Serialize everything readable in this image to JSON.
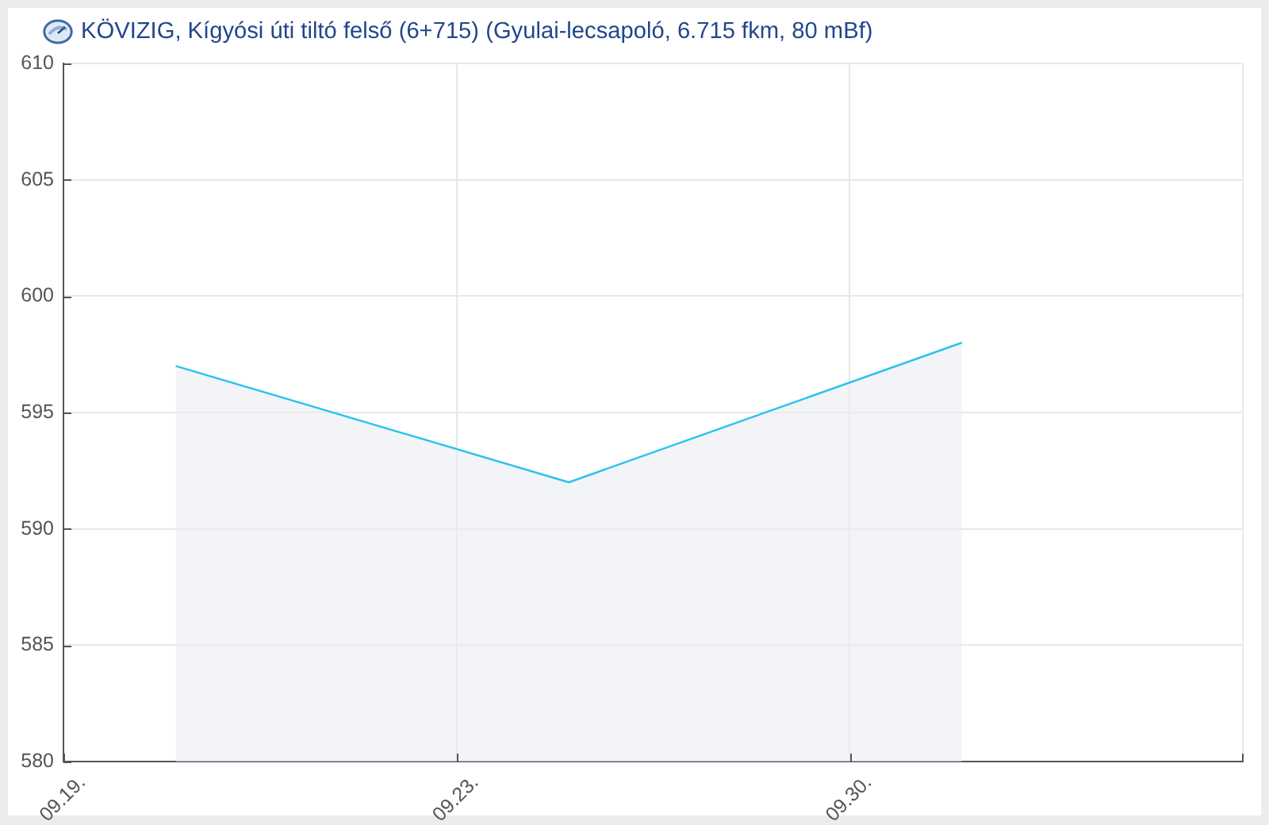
{
  "chart_data": {
    "type": "area",
    "title": "KÖVIZIG, Kígyósi úti tiltó felső (6+715) (Gyulai-lecsapoló, 6.715 fkm, 80 mBf)",
    "x": [
      "--09-18",
      "--09-25",
      "--10-02"
    ],
    "series": [
      {
        "color": "#2ac3ee",
        "values": [
          597,
          592,
          598
        ]
      }
    ],
    "xlim": [
      "--09-16",
      "--10-07"
    ],
    "xticks": [
      {
        "value": "--09-16",
        "label": "09.19."
      },
      {
        "value": "--09-23",
        "label": "09.23."
      },
      {
        "value": "--09-30",
        "label": "09.30."
      },
      {
        "value": "--10-07",
        "label": null
      }
    ],
    "ylim": [
      580,
      610
    ],
    "yticks": [
      580,
      585,
      590,
      595,
      600,
      605,
      610
    ],
    "grid": true,
    "marker": "none"
  }
}
